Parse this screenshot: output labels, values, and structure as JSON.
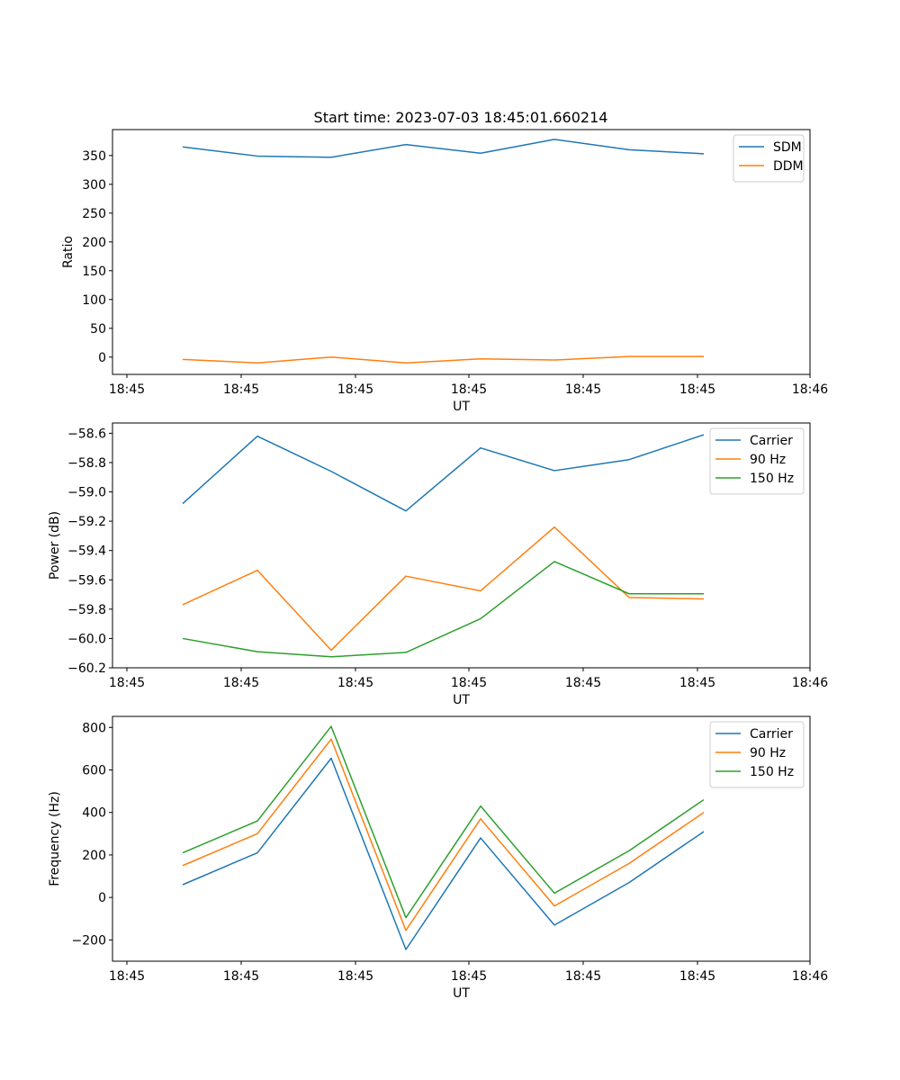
{
  "figure": {
    "title": "Start time: 2023-07-03 18:45:01.660214"
  },
  "chart_data": [
    {
      "type": "line",
      "title": "Start time: 2023-07-03 18:45:01.660214",
      "xlabel": "UT",
      "ylabel": "Ratio",
      "x_ticks": [
        "18:45",
        "18:45",
        "18:45",
        "18:45",
        "18:45",
        "18:45",
        "18:46"
      ],
      "ylim": [
        -30,
        395
      ],
      "y_ticks": [
        0,
        50,
        100,
        150,
        200,
        250,
        300,
        350
      ],
      "y_tick_labels": [
        "0",
        "50",
        "100",
        "150",
        "200",
        "250",
        "300",
        "350"
      ],
      "legend_position": "top-right",
      "series": [
        {
          "name": "SDM",
          "color": "#1f77b4",
          "values": [
            365,
            349,
            347,
            369,
            354,
            378,
            360,
            353
          ]
        },
        {
          "name": "DDM",
          "color": "#ff7f0e",
          "values": [
            -4,
            -10,
            0,
            -10,
            -3,
            -5,
            1,
            1
          ]
        }
      ]
    },
    {
      "type": "line",
      "title": "",
      "xlabel": "UT",
      "ylabel": "Power (dB)",
      "x_ticks": [
        "18:45",
        "18:45",
        "18:45",
        "18:45",
        "18:45",
        "18:45",
        "18:46"
      ],
      "ylim": [
        -60.2,
        -58.53
      ],
      "y_ticks": [
        -60.2,
        -60.0,
        -59.8,
        -59.6,
        -59.4,
        -59.2,
        -59.0,
        -58.8,
        -58.6
      ],
      "y_tick_labels": [
        "−60.2",
        "−60.0",
        "−59.8",
        "−59.6",
        "−59.4",
        "−59.2",
        "−59.0",
        "−58.8",
        "−58.6"
      ],
      "legend_position": "top-right",
      "series": [
        {
          "name": "Carrier",
          "color": "#1f77b4",
          "values": [
            -59.08,
            -58.62,
            -58.86,
            -59.13,
            -58.7,
            -58.855,
            -58.78,
            -58.61
          ]
        },
        {
          "name": "90 Hz",
          "color": "#ff7f0e",
          "values": [
            -59.77,
            -59.535,
            -60.08,
            -59.575,
            -59.675,
            -59.24,
            -59.72,
            -59.73
          ]
        },
        {
          "name": "150 Hz",
          "color": "#2ca02c",
          "values": [
            -60.0,
            -60.09,
            -60.125,
            -60.095,
            -59.865,
            -59.475,
            -59.695,
            -59.695
          ]
        }
      ]
    },
    {
      "type": "line",
      "title": "",
      "xlabel": "UT",
      "ylabel": "Frequency (Hz)",
      "x_ticks": [
        "18:45",
        "18:45",
        "18:45",
        "18:45",
        "18:45",
        "18:45",
        "18:46"
      ],
      "ylim": [
        -300,
        852
      ],
      "y_ticks": [
        -200,
        0,
        200,
        400,
        600,
        800
      ],
      "y_tick_labels": [
        "−200",
        "0",
        "200",
        "400",
        "600",
        "800"
      ],
      "legend_position": "top-right",
      "series": [
        {
          "name": "Carrier",
          "color": "#1f77b4",
          "values": [
            60,
            210,
            655,
            -245,
            280,
            -130,
            70,
            310
          ]
        },
        {
          "name": "90 Hz",
          "color": "#ff7f0e",
          "values": [
            150,
            300,
            745,
            -155,
            370,
            -40,
            160,
            400
          ]
        },
        {
          "name": "150 Hz",
          "color": "#2ca02c",
          "values": [
            210,
            360,
            805,
            -95,
            430,
            20,
            220,
            460
          ]
        }
      ]
    }
  ]
}
